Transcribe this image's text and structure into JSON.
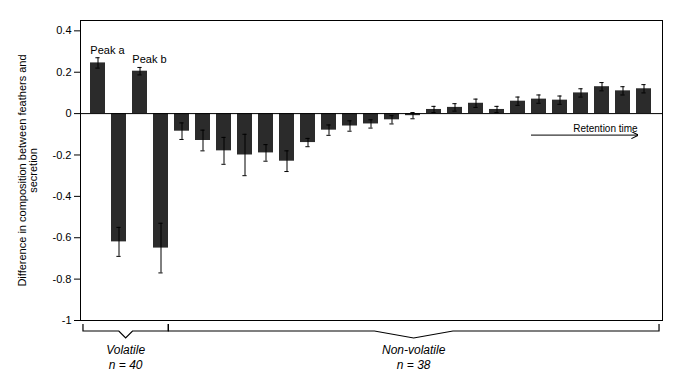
{
  "chart_data": {
    "type": "bar",
    "categories": [
      null,
      null,
      null,
      null,
      null,
      null,
      null,
      null,
      null,
      null,
      null,
      null,
      null,
      null,
      null,
      null,
      null,
      null,
      null,
      null,
      null,
      null,
      null,
      null,
      null,
      null,
      null
    ],
    "values": [
      0.245,
      -0.62,
      0.205,
      -0.65,
      -0.085,
      -0.13,
      -0.18,
      -0.2,
      -0.19,
      -0.23,
      -0.14,
      -0.08,
      -0.06,
      -0.05,
      -0.03,
      -0.01,
      0.02,
      0.03,
      0.05,
      0.02,
      0.06,
      0.07,
      0.065,
      0.1,
      0.13,
      0.11,
      0.12
    ],
    "errors": [
      0.025,
      0.07,
      0.018,
      0.12,
      0.04,
      0.05,
      0.065,
      0.1,
      0.04,
      0.05,
      0.02,
      0.025,
      0.025,
      0.02,
      0.02,
      0.015,
      0.015,
      0.018,
      0.02,
      0.015,
      0.02,
      0.02,
      0.02,
      0.02,
      0.02,
      0.02,
      0.02
    ],
    "color": "#2b2b2b",
    "ylabel": "Difference in composition between feathers and\nsecretion",
    "ylim": [
      -1.0,
      0.45
    ],
    "yticks": [
      -1.0,
      -0.8,
      -0.6,
      -0.4,
      -0.2,
      0.0,
      0.2,
      0.4
    ],
    "tick_labels": "y",
    "annotations": [
      {
        "text": "Peak a",
        "index": 0
      },
      {
        "text": "Peak b",
        "index": 2
      }
    ],
    "retention_label": "Retention time",
    "groups": [
      {
        "label": "Volatile",
        "n": "n = 40",
        "size": 4
      },
      {
        "label": "Non-volatile",
        "n": "n = 38",
        "size": 23
      }
    ]
  }
}
